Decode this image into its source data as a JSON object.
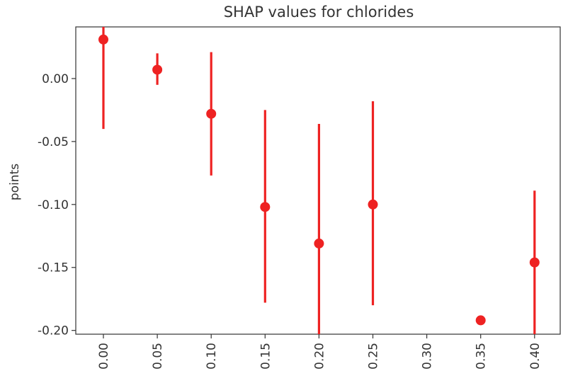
{
  "chart_data": {
    "type": "scatter",
    "title": "SHAP values for chlorides",
    "xlabel": "",
    "ylabel": "points",
    "categories": [
      "0.00",
      "0.05",
      "0.10",
      "0.15",
      "0.20",
      "0.25",
      "0.30",
      "0.35",
      "0.40"
    ],
    "y_ticks": [
      "0.00",
      "-0.05",
      "-0.10",
      "-0.15",
      "-0.20"
    ],
    "y_tick_values": [
      0.0,
      -0.05,
      -0.1,
      -0.15,
      -0.2
    ],
    "ylim": [
      -0.203,
      0.041
    ],
    "series": [
      {
        "color": "#ee2222",
        "points": [
          {
            "category": "0.00",
            "value": 0.031,
            "err_low": -0.04,
            "err_high": 0.041
          },
          {
            "category": "0.05",
            "value": 0.007,
            "err_low": -0.005,
            "err_high": 0.02
          },
          {
            "category": "0.10",
            "value": -0.028,
            "err_low": -0.077,
            "err_high": 0.021
          },
          {
            "category": "0.15",
            "value": -0.102,
            "err_low": -0.178,
            "err_high": -0.025
          },
          {
            "category": "0.20",
            "value": -0.131,
            "err_low": -0.203,
            "err_high": -0.036
          },
          {
            "category": "0.25",
            "value": -0.1,
            "err_low": -0.18,
            "err_high": -0.018
          },
          {
            "category": "0.35",
            "value": -0.192,
            "err_low": null,
            "err_high": null
          },
          {
            "category": "0.40",
            "value": -0.146,
            "err_low": -0.203,
            "err_high": -0.089
          }
        ]
      }
    ],
    "grid": false,
    "legend": "none"
  }
}
